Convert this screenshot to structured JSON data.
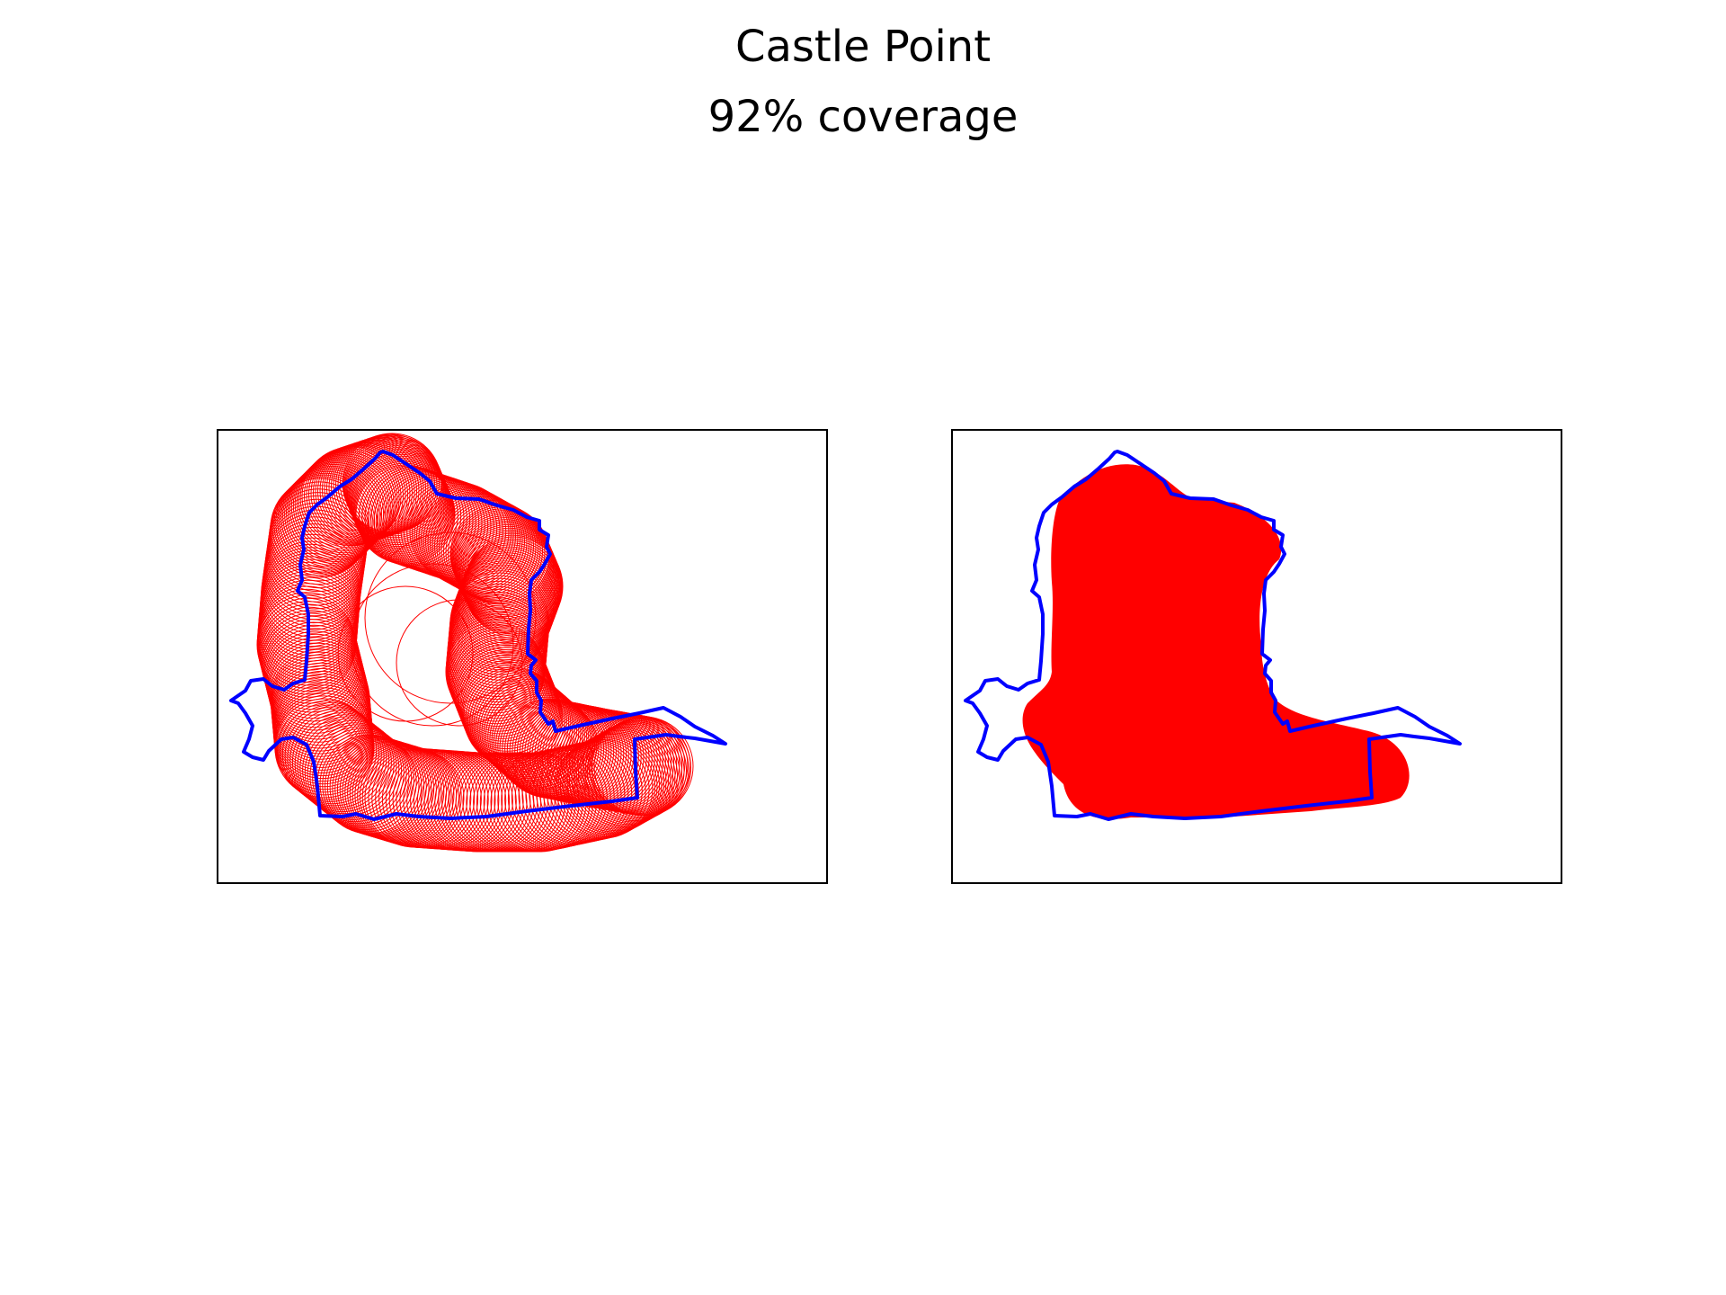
{
  "figure": {
    "title": "Castle Point",
    "subtitle": "92% coverage"
  },
  "colors": {
    "boundary": "#0000ff",
    "coverage": "#ff0000",
    "frame": "#000000",
    "background": "#ffffff"
  },
  "panels": [
    {
      "name": "coverage-circles-panel",
      "style": "circle outlines"
    },
    {
      "name": "coverage-union-panel",
      "style": "filled union"
    }
  ],
  "coverage_percent": 92
}
